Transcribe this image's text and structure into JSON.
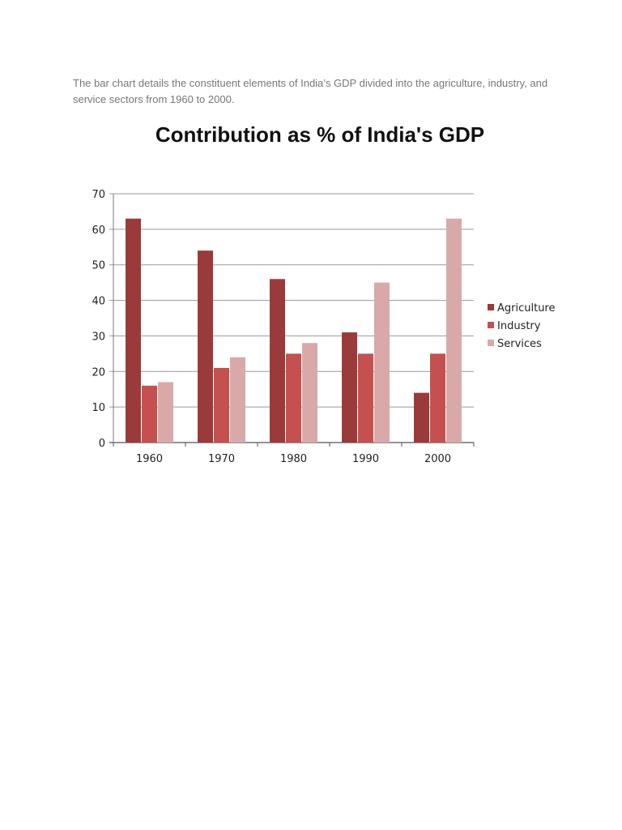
{
  "intro_text": "The bar chart details the constituent elements of India’s GDP divided into the agriculture, industry, and service sectors from 1960 to 2000.",
  "chart_data": {
    "type": "bar",
    "title": "Contribution as % of India's GDP",
    "xlabel": "",
    "ylabel": "",
    "categories": [
      "1960",
      "1970",
      "1980",
      "1990",
      "2000"
    ],
    "series": [
      {
        "name": "Agriculture",
        "color": "#9b3a3a",
        "values": [
          63,
          54,
          46,
          31,
          14
        ]
      },
      {
        "name": "Industry",
        "color": "#c4504f",
        "values": [
          16,
          21,
          25,
          25,
          25
        ]
      },
      {
        "name": "Services",
        "color": "#d9a9a9",
        "values": [
          17,
          24,
          28,
          45,
          63
        ]
      }
    ],
    "ylim": [
      0,
      70
    ],
    "yticks": [
      0,
      10,
      20,
      30,
      40,
      50,
      60,
      70
    ],
    "grid": true,
    "legend": "right"
  }
}
